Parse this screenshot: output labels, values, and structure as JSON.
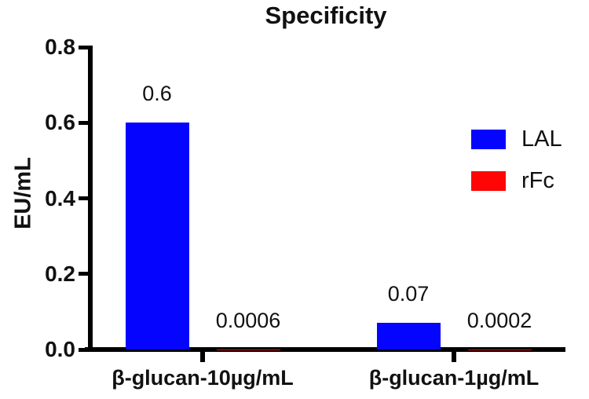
{
  "chart_data": {
    "type": "bar",
    "title": "Specificity",
    "xlabel": "",
    "ylabel": "EU/mL",
    "categories": [
      "β-glucan-10µg/mL",
      "β-glucan-1µg/mL"
    ],
    "series": [
      {
        "name": "LAL",
        "color": "#0404ff",
        "values": [
          0.6,
          0.07
        ],
        "labels": [
          "0.6",
          "0.07"
        ]
      },
      {
        "name": "rFc",
        "color": "#ff0505",
        "values": [
          0.0006,
          0.0002
        ],
        "labels": [
          "0.0006",
          "0.0002"
        ]
      }
    ],
    "ylim": [
      0,
      0.8
    ],
    "yticks": [
      {
        "value": 0.0,
        "label": "0.0"
      },
      {
        "value": 0.2,
        "label": "0.2"
      },
      {
        "value": 0.4,
        "label": "0.4"
      },
      {
        "value": 0.6,
        "label": "0.6"
      },
      {
        "value": 0.8,
        "label": "0.8"
      }
    ],
    "legend_position": "right",
    "grid": false,
    "axis_color": "#000000",
    "background_color": "#ffffff"
  }
}
